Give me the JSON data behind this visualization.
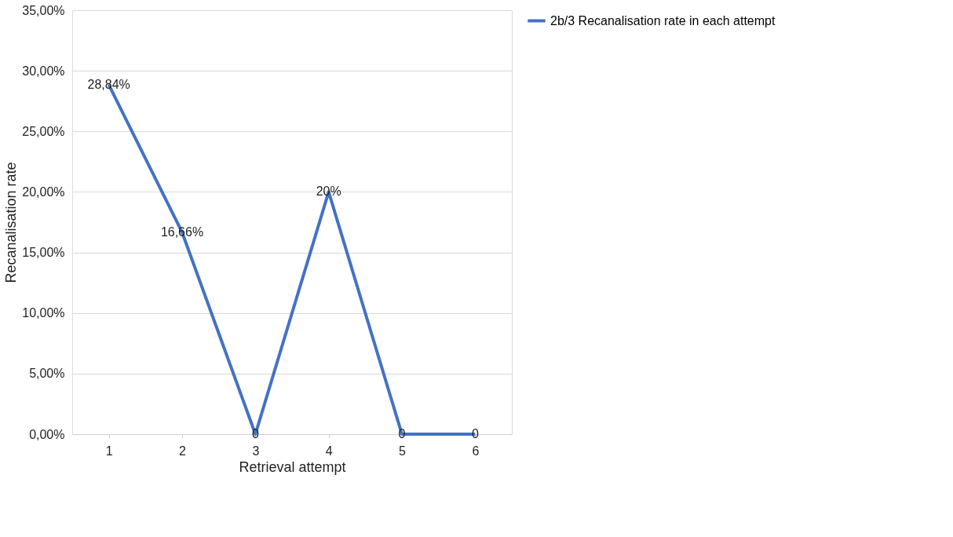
{
  "chart_data": {
    "type": "line",
    "xlabel": "Retrieval attempt",
    "ylabel": "Recanalisation rate",
    "categories": [
      "1",
      "2",
      "3",
      "4",
      "5",
      "6"
    ],
    "series": [
      {
        "name": "2b/3 Recanalisation rate in each attempt",
        "color": "#4472c4",
        "values": [
          28.84,
          16.66,
          0,
          20,
          0,
          0
        ],
        "value_labels": [
          "28,84%",
          "16,66%",
          "0",
          "20%",
          "0",
          "0"
        ]
      }
    ],
    "ylim": [
      0,
      35
    ],
    "yticks": [
      {
        "value": 0,
        "label": "0,00%"
      },
      {
        "value": 5,
        "label": "5,00%"
      },
      {
        "value": 10,
        "label": "10,00%"
      },
      {
        "value": 15,
        "label": "15,00%"
      },
      {
        "value": 20,
        "label": "20,00%"
      },
      {
        "value": 25,
        "label": "25,00%"
      },
      {
        "value": 30,
        "label": "30,00%"
      },
      {
        "value": 35,
        "label": "35,00%"
      }
    ],
    "grid": "y",
    "legend": "right",
    "line_style": "solid"
  }
}
